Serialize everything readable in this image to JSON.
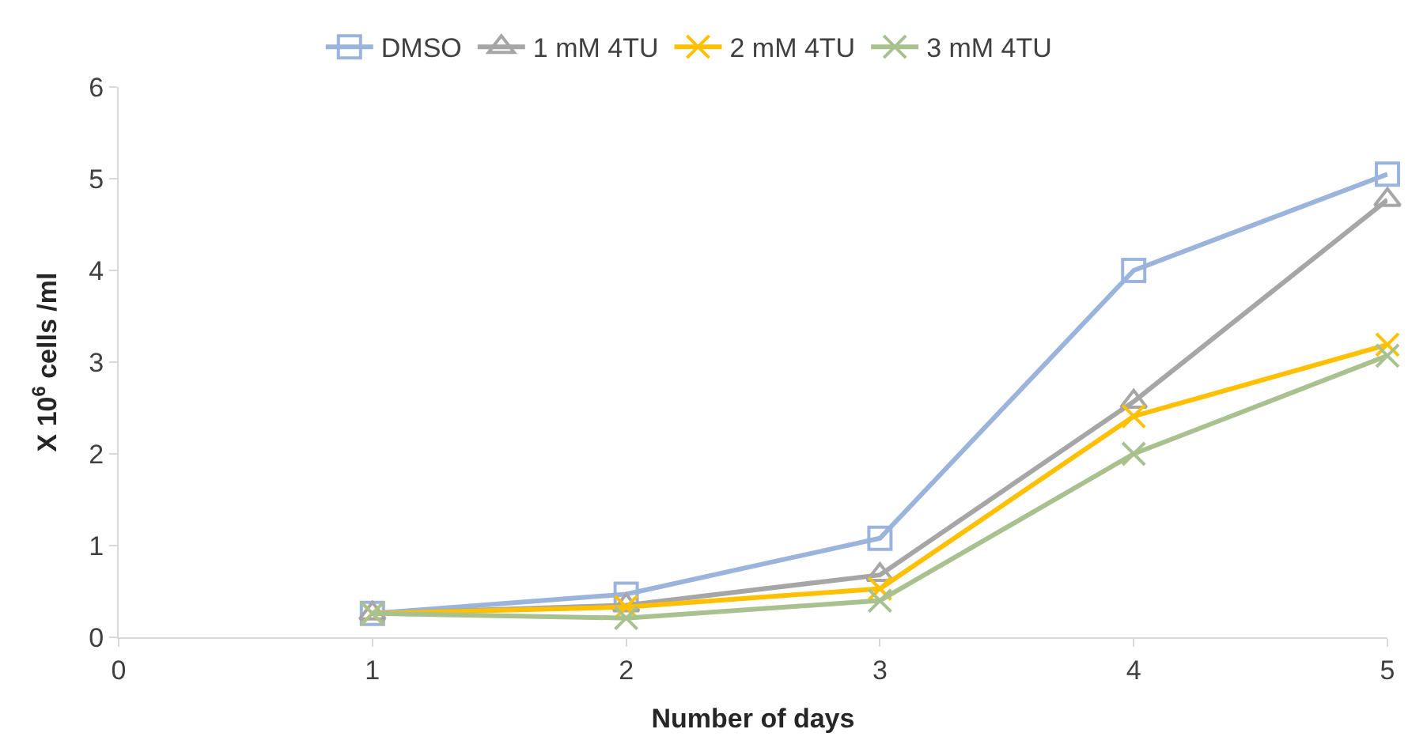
{
  "chart_data": {
    "type": "line",
    "xlabel": "Number of days",
    "ylabel": "X 10$^{6}$ cells /ml",
    "x": [
      1,
      2,
      3,
      4,
      5
    ],
    "series": [
      {
        "name": "DMSO",
        "color": "#9bb4dc",
        "marker": "square",
        "values": [
          0.26,
          0.47,
          1.08,
          4.0,
          5.05
        ]
      },
      {
        "name": "1 mM 4TU",
        "color": "#a6a6a6",
        "marker": "triangle",
        "values": [
          0.26,
          0.35,
          0.68,
          2.57,
          4.77
        ]
      },
      {
        "name": "2 mM 4TU",
        "color": "#ffc000",
        "marker": "cross",
        "values": [
          0.26,
          0.33,
          0.53,
          2.41,
          3.19
        ]
      },
      {
        "name": "3 mM 4TU",
        "color": "#a9c18f",
        "marker": "cross",
        "values": [
          0.26,
          0.21,
          0.4,
          2.0,
          3.07
        ]
      }
    ],
    "xlim": [
      0,
      5
    ],
    "xticks": [
      0,
      1,
      2,
      3,
      4,
      5
    ],
    "ylim": [
      0,
      6
    ],
    "yticks": [
      0,
      1,
      2,
      3,
      4,
      5,
      6
    ],
    "legend": "top",
    "line_style": "solid"
  }
}
